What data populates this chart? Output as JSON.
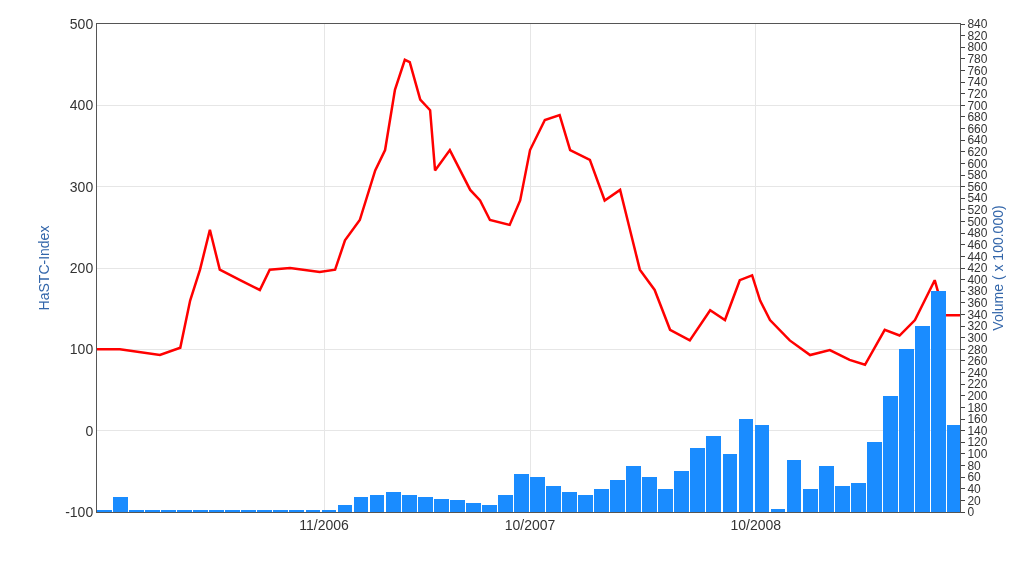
{
  "chart_data": {
    "type": "line",
    "ylabel": "HaSTC-Index",
    "y2label": "Volume ( x 100.000)",
    "xlim": [
      "2005-10-29",
      "2009-08-28"
    ],
    "xticks": [
      {
        "value": "2006-11-01",
        "label": "11/2006"
      },
      {
        "value": "2007-10-01",
        "label": "10/2007"
      },
      {
        "value": "2008-10-01",
        "label": "10/2008"
      }
    ],
    "ylim": [
      -100,
      500
    ],
    "yticks": [
      -100,
      0,
      100,
      200,
      300,
      400,
      500
    ],
    "y2lim": [
      0,
      840
    ],
    "y2ticks": [
      0,
      20,
      40,
      60,
      80,
      100,
      120,
      140,
      160,
      180,
      200,
      220,
      240,
      260,
      280,
      300,
      320,
      340,
      360,
      380,
      400,
      420,
      440,
      460,
      480,
      500,
      520,
      540,
      560,
      580,
      600,
      620,
      640,
      660,
      680,
      700,
      720,
      740,
      760,
      780,
      800,
      820,
      840
    ],
    "grid": true,
    "marker": "none",
    "line_style": "solid",
    "series": [
      {
        "color": "#ff0000",
        "x": [
          "2005-10-29",
          "2005-12-05",
          "2006-02-08",
          "2006-03-13",
          "2006-03-29",
          "2006-04-14",
          "2006-04-30",
          "2006-05-16",
          "2006-06-18",
          "2006-07-20",
          "2006-08-05",
          "2006-09-07",
          "2006-10-25",
          "2006-11-19",
          "2006-12-05",
          "2006-12-29",
          "2007-01-23",
          "2007-02-08",
          "2007-02-24",
          "2007-03-12",
          "2007-03-20",
          "2007-04-06",
          "2007-04-22",
          "2007-04-30",
          "2007-05-24",
          "2007-06-26",
          "2007-07-12",
          "2007-07-28",
          "2007-08-29",
          "2007-09-15",
          "2007-10-01",
          "2007-10-25",
          "2007-11-18",
          "2007-12-05",
          "2008-01-06",
          "2008-01-30",
          "2008-02-24",
          "2008-03-11",
          "2008-03-27",
          "2008-04-20",
          "2008-05-15",
          "2008-06-16",
          "2008-07-19",
          "2008-08-12",
          "2008-09-05",
          "2008-09-25",
          "2008-10-08",
          "2008-10-24",
          "2008-11-25",
          "2008-12-28",
          "2009-01-29",
          "2009-03-02",
          "2009-03-27",
          "2009-04-28",
          "2009-05-22",
          "2009-06-16",
          "2009-07-18",
          "2009-08-03",
          "2009-08-28"
        ],
        "values": [
          100,
          100,
          93,
          102,
          160,
          198,
          247,
          198,
          185,
          173,
          198,
          200,
          195,
          198,
          234,
          259,
          320,
          345,
          419,
          456,
          453,
          407,
          394,
          320,
          345,
          296,
          283,
          259,
          253,
          283,
          345,
          382,
          388,
          345,
          333,
          283,
          296,
          247,
          198,
          173,
          124,
          111,
          148,
          136,
          185,
          191,
          160,
          136,
          111,
          93,
          99,
          87,
          81,
          124,
          117,
          136,
          185,
          142,
          142
        ]
      },
      {
        "type": "bar",
        "axis": "y2",
        "color": "#1a8cff",
        "x": [
          "2005-11-10",
          "2005-12-06",
          "2006-01-01",
          "2006-01-27",
          "2006-02-22",
          "2006-03-20",
          "2006-04-15",
          "2006-05-11",
          "2006-06-06",
          "2006-07-02",
          "2006-07-28",
          "2006-08-23",
          "2006-09-18",
          "2006-10-14",
          "2006-11-09",
          "2006-12-05",
          "2006-12-31",
          "2007-01-26",
          "2007-02-21",
          "2007-03-19",
          "2007-04-14",
          "2007-05-10",
          "2007-06-05",
          "2007-07-01",
          "2007-07-27",
          "2007-08-22",
          "2007-09-17",
          "2007-10-13",
          "2007-11-08",
          "2007-12-04",
          "2007-12-30",
          "2008-01-25",
          "2008-02-20",
          "2008-03-17",
          "2008-04-12",
          "2008-05-08",
          "2008-06-03",
          "2008-06-29",
          "2008-07-25",
          "2008-08-20",
          "2008-09-15",
          "2008-10-11",
          "2008-11-06",
          "2008-12-02",
          "2008-12-28",
          "2009-01-23",
          "2009-02-18",
          "2009-03-16",
          "2009-04-11",
          "2009-05-07",
          "2009-06-02",
          "2009-06-28",
          "2009-07-24",
          "2009-08-19"
        ],
        "values": [
          3,
          26,
          3,
          3,
          3,
          3,
          4,
          4,
          4,
          3,
          3,
          3,
          3,
          3,
          3,
          12,
          25,
          30,
          35,
          30,
          25,
          22,
          20,
          15,
          12,
          30,
          65,
          60,
          45,
          35,
          30,
          40,
          55,
          80,
          60,
          40,
          70,
          110,
          130,
          100,
          160,
          150,
          5,
          90,
          40,
          80,
          45,
          50,
          120,
          200,
          280,
          320,
          380,
          150
        ]
      }
    ]
  }
}
